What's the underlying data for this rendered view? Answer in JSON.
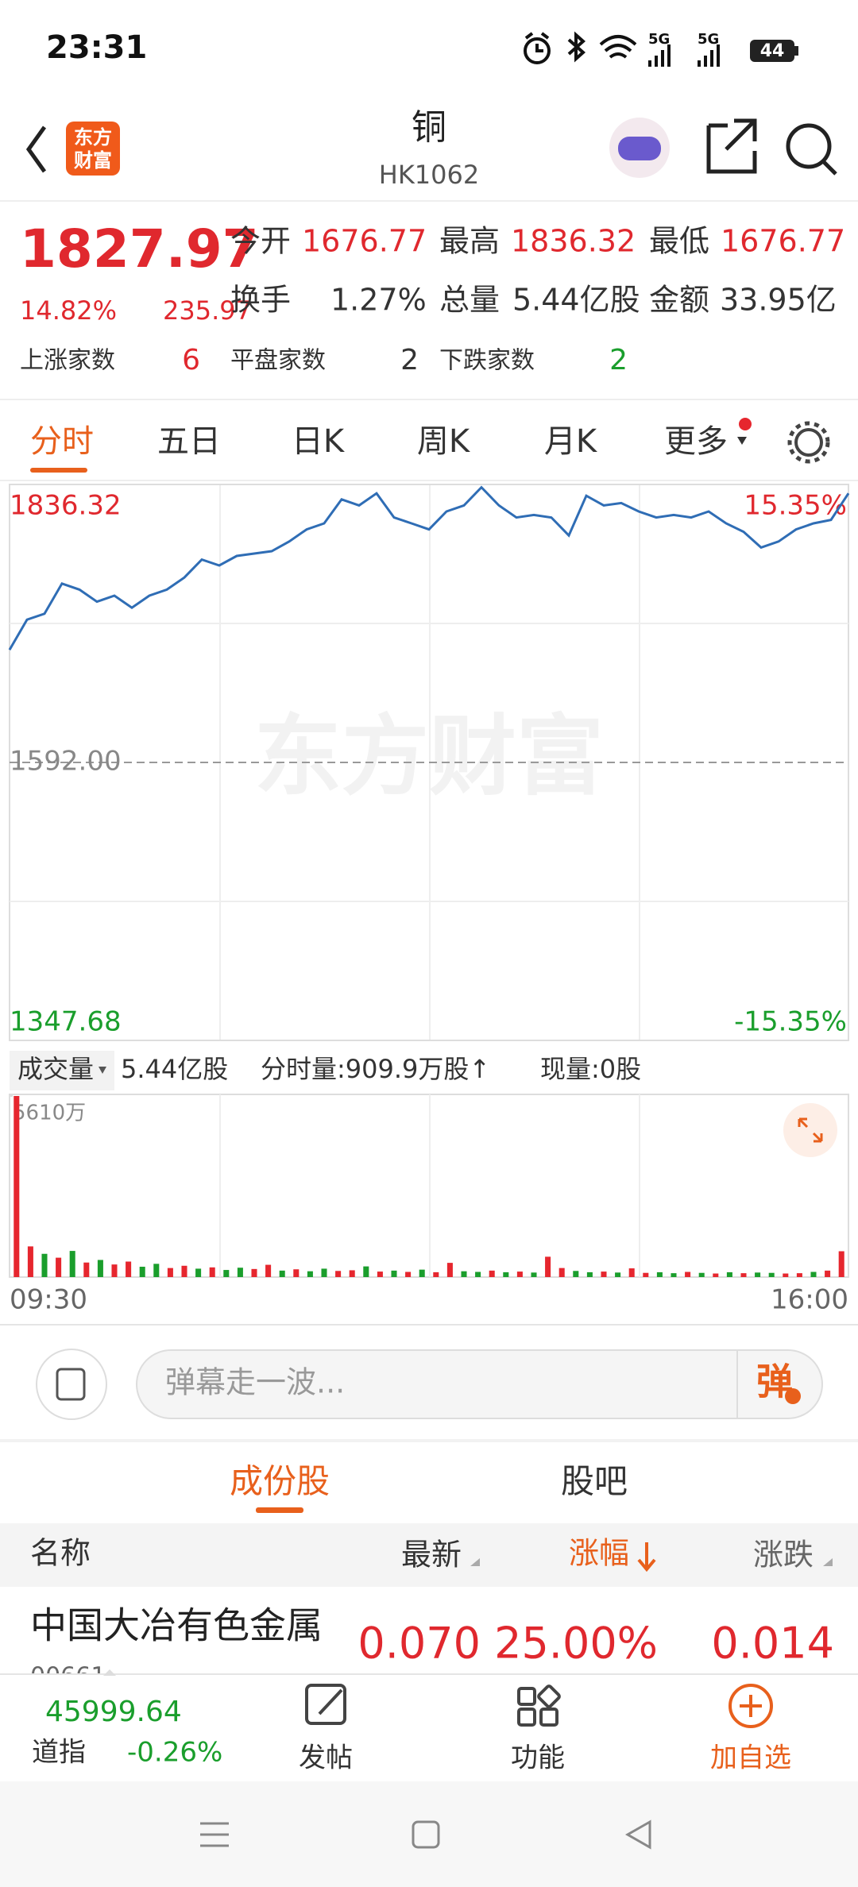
{
  "status_bar": {
    "time": "23:31",
    "network": "5G",
    "battery": "44"
  },
  "header": {
    "title": "铜",
    "code": "HK1062",
    "logo_lines": [
      "东方",
      "财富"
    ]
  },
  "quote": {
    "price": "1827.97",
    "change_pct": "14.82%",
    "change": "235.97",
    "stats": [
      {
        "label": "今开",
        "value": "1676.77"
      },
      {
        "label": "最高",
        "value": "1836.32"
      },
      {
        "label": "最低",
        "value": "1676.77"
      },
      {
        "label": "换手",
        "value": "1.27%"
      },
      {
        "label": "总量",
        "value": "5.44亿股"
      },
      {
        "label": "金额",
        "value": "33.95亿"
      }
    ],
    "breadth": [
      {
        "label": "上涨家数",
        "value": "6"
      },
      {
        "label": "平盘家数",
        "value": "2"
      },
      {
        "label": "下跌家数",
        "value": "2"
      }
    ]
  },
  "tabs": [
    "分时",
    "五日",
    "日K",
    "周K",
    "月K",
    "更多"
  ],
  "chart_data": [
    {
      "type": "line",
      "color": "#2f6db5",
      "watermark": "东方财富",
      "values": [
        1691.0,
        1717.5,
        1722.7,
        1749.2,
        1743.9,
        1733.3,
        1738.6,
        1728.0,
        1738.6,
        1743.9,
        1754.5,
        1770.3,
        1765.1,
        1773.5,
        1775.6,
        1777.7,
        1786.2,
        1796.8,
        1802.1,
        1823.2,
        1817.9,
        1828.5,
        1807.3,
        1802.1,
        1796.8,
        1812.6,
        1817.9,
        1833.8,
        1817.9,
        1807.3,
        1809.5,
        1807.3,
        1791.5,
        1826.4,
        1817.9,
        1820.0,
        1812.6,
        1807.3,
        1809.5,
        1807.3,
        1812.6,
        1802.1,
        1794.7,
        1780.9,
        1786.2,
        1796.8,
        1802.1,
        1805.2,
        1828.5
      ],
      "ylim": [
        1347.68,
        1836.32
      ],
      "yticks": [
        1347.68,
        {
          "value": 1592,
          "label": "1592.00"
        },
        1836.32
      ],
      "y2lim": [
        -15.35,
        15.35
      ],
      "y2ticks": [
        {
          "value": -15.35,
          "label": "-15.35%"
        },
        {
          "value": 15.35,
          "label": "15.35%"
        }
      ],
      "x_labels": [
        "09:30",
        "16:00"
      ]
    },
    {
      "type": "bar",
      "values": [
        56100000,
        9500000,
        7200000,
        6000000,
        8100000,
        4500000,
        5300000,
        3900000,
        4800000,
        3200000,
        4100000,
        2800000,
        3500000,
        2600000,
        3000000,
        2200000,
        2900000,
        2500000,
        3800000,
        2000000,
        2400000,
        1800000,
        2600000,
        1900000,
        2100000,
        3300000,
        1700000,
        2000000,
        1600000,
        2300000,
        1500000,
        4400000,
        1800000,
        1600000,
        2000000,
        1500000,
        1700000,
        1400000,
        6300000,
        2800000,
        1900000,
        1500000,
        1700000,
        1400000,
        2700000,
        1300000,
        1500000,
        1200000,
        1600000,
        1300000,
        1100000,
        1500000,
        1200000,
        1400000,
        1300000,
        1100000,
        1200000,
        1600000,
        2000000,
        8000000
      ],
      "colors": [
        "#e6262e",
        "#e6262e",
        "#1a9e2c",
        "#e6262e",
        "#1a9e2c",
        "#e6262e",
        "#1a9e2c",
        "#e6262e",
        "#e6262e",
        "#1a9e2c",
        "#1a9e2c",
        "#e6262e",
        "#e6262e",
        "#1a9e2c",
        "#e6262e",
        "#1a9e2c",
        "#1a9e2c",
        "#e6262e",
        "#e6262e",
        "#1a9e2c",
        "#e6262e",
        "#1a9e2c",
        "#1a9e2c",
        "#e6262e",
        "#e6262e",
        "#1a9e2c",
        "#e6262e",
        "#1a9e2c",
        "#e6262e",
        "#1a9e2c",
        "#e6262e",
        "#e6262e",
        "#1a9e2c",
        "#1a9e2c",
        "#e6262e",
        "#1a9e2c",
        "#e6262e",
        "#1a9e2c",
        "#e6262e",
        "#e6262e",
        "#1a9e2c",
        "#1a9e2c",
        "#e6262e",
        "#1a9e2c",
        "#e6262e",
        "#e6262e",
        "#1a9e2c",
        "#1a9e2c",
        "#e6262e",
        "#1a9e2c",
        "#e6262e",
        "#1a9e2c",
        "#e6262e",
        "#1a9e2c",
        "#1a9e2c",
        "#e6262e",
        "#e6262e",
        "#1a9e2c",
        "#e6262e",
        "#e6262e"
      ],
      "ylim": [
        0,
        56100000
      ],
      "yticks": [
        {
          "value": 56100000,
          "label": "5610万"
        }
      ]
    }
  ],
  "volume_header": {
    "selector": "成交量",
    "total": "5.44亿股",
    "tick_volume": "分时量:909.9万股↑",
    "current": "现量:0股"
  },
  "danmaku": {
    "placeholder": "弹幕走一波...",
    "button": "弹"
  },
  "section_tabs": [
    "成份股",
    "股吧"
  ],
  "table": {
    "columns": [
      "名称",
      "最新",
      "涨幅",
      "涨跌"
    ],
    "rows": [
      {
        "name": "中国大冶有色金属",
        "code": "00661",
        "price": "0.070",
        "change_pct": "25.00%",
        "change": "0.014"
      }
    ]
  },
  "bottom_bar": {
    "index_value": "45999.64",
    "index_name": "道指",
    "index_change": "-0.26%",
    "actions": [
      "发帖",
      "功能",
      "加自选"
    ]
  }
}
